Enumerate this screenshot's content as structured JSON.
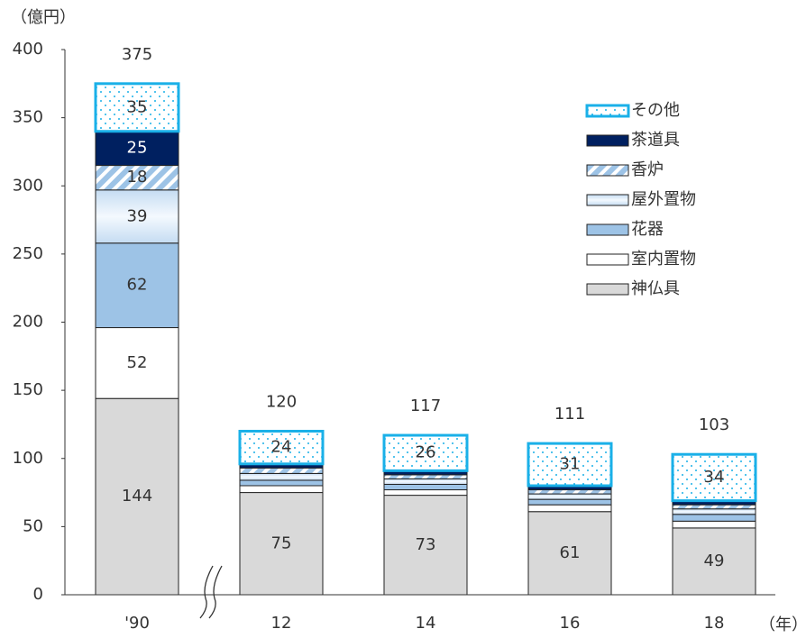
{
  "chart_data": {
    "type": "stacked_bar",
    "y_label": "（億円）",
    "x_label": "（年）",
    "categories": [
      "'90",
      "12",
      "14",
      "16",
      "18"
    ],
    "series": [
      {
        "name": "神仏具",
        "color": "#d9d9d9",
        "values": [
          144,
          75,
          73,
          61,
          49
        ]
      },
      {
        "name": "室内置物",
        "color": "#ffffff",
        "values": [
          52,
          5,
          4,
          5,
          5
        ]
      },
      {
        "name": "花器",
        "color": "#9dc3e6",
        "values": [
          62,
          4,
          4,
          4,
          5
        ]
      },
      {
        "name": "屋外置物",
        "color": "#deebf7",
        "values": [
          39,
          5,
          4,
          4,
          4
        ]
      },
      {
        "name": "香炉",
        "color": "#9dc3e6",
        "values": [
          18,
          4,
          3,
          3,
          3
        ]
      },
      {
        "name": "茶道具",
        "color": "#002060",
        "values": [
          25,
          3,
          3,
          3,
          3
        ]
      },
      {
        "name": "その他",
        "color": "#1ab0e8",
        "values": [
          35,
          24,
          26,
          31,
          34
        ]
      }
    ],
    "totals": [
      375,
      120,
      117,
      111,
      103
    ],
    "ylim": [
      0,
      400
    ],
    "yticks": [
      0,
      50,
      100,
      150,
      200,
      250,
      300,
      350,
      400
    ],
    "grid": false,
    "legend": "right"
  }
}
